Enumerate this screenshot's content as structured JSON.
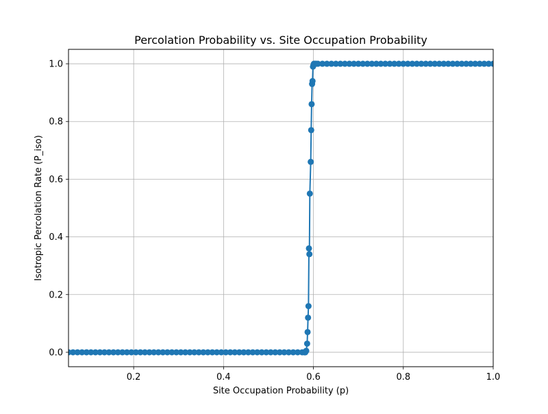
{
  "chart_data": {
    "type": "line",
    "title": "Percolation Probability vs. Site Occupation Probability",
    "xlabel": "Site Occupation Probability (p)",
    "ylabel": "Isotropic Percolation Rate (P_iso)",
    "xlim": [
      0.055,
      1.0
    ],
    "ylim": [
      -0.05,
      1.05
    ],
    "xticks": [
      0.2,
      0.4,
      0.6,
      0.8,
      1.0
    ],
    "xtick_labels": [
      "0.2",
      "0.4",
      "0.6",
      "0.8",
      "1.0"
    ],
    "yticks": [
      0.0,
      0.2,
      0.4,
      0.6,
      0.8,
      1.0
    ],
    "ytick_labels": [
      "0.0",
      "0.2",
      "0.4",
      "0.6",
      "0.8",
      "1.0"
    ],
    "grid": true,
    "legend": "none",
    "marker": "circle",
    "color": "#1f77b4",
    "series": [
      {
        "x": [
          0.055,
          0.065,
          0.075,
          0.085,
          0.095,
          0.105,
          0.115,
          0.125,
          0.135,
          0.145,
          0.155,
          0.165,
          0.175,
          0.185,
          0.195,
          0.205,
          0.215,
          0.225,
          0.235,
          0.245,
          0.255,
          0.265,
          0.275,
          0.285,
          0.295,
          0.305,
          0.315,
          0.325,
          0.335,
          0.345,
          0.355,
          0.365,
          0.375,
          0.385,
          0.395,
          0.405,
          0.415,
          0.425,
          0.435,
          0.445,
          0.455,
          0.465,
          0.475,
          0.485,
          0.495,
          0.505,
          0.515,
          0.525,
          0.535,
          0.545,
          0.555,
          0.565,
          0.575,
          0.58,
          0.582,
          0.584,
          0.586,
          0.587,
          0.588,
          0.589,
          0.59,
          0.591,
          0.592,
          0.594,
          0.595,
          0.596,
          0.597,
          0.598,
          0.599,
          0.6,
          0.601,
          0.603,
          0.606,
          0.61,
          0.62,
          0.63,
          0.64,
          0.65,
          0.66,
          0.67,
          0.68,
          0.69,
          0.7,
          0.71,
          0.72,
          0.73,
          0.74,
          0.75,
          0.76,
          0.77,
          0.78,
          0.79,
          0.8,
          0.81,
          0.82,
          0.83,
          0.84,
          0.85,
          0.86,
          0.87,
          0.88,
          0.89,
          0.9,
          0.91,
          0.92,
          0.93,
          0.94,
          0.95,
          0.96,
          0.97,
          0.98,
          0.99,
          1.0
        ],
        "y": [
          0,
          0,
          0,
          0,
          0,
          0,
          0,
          0,
          0,
          0,
          0,
          0,
          0,
          0,
          0,
          0,
          0,
          0,
          0,
          0,
          0,
          0,
          0,
          0,
          0,
          0,
          0,
          0,
          0,
          0,
          0,
          0,
          0,
          0,
          0,
          0,
          0,
          0,
          0,
          0,
          0,
          0,
          0,
          0,
          0,
          0,
          0,
          0,
          0,
          0,
          0,
          0,
          0,
          0,
          0,
          0.005,
          0.03,
          0.07,
          0.12,
          0.16,
          0.36,
          0.34,
          0.55,
          0.66,
          0.77,
          0.86,
          0.93,
          0.94,
          0.99,
          0.995,
          1.0,
          1.0,
          1.0,
          1.0,
          1.0,
          1.0,
          1.0,
          1.0,
          1.0,
          1.0,
          1.0,
          1.0,
          1.0,
          1.0,
          1.0,
          1.0,
          1.0,
          1.0,
          1.0,
          1.0,
          1.0,
          1.0,
          1.0,
          1.0,
          1.0,
          1.0,
          1.0,
          1.0,
          1.0,
          1.0,
          1.0,
          1.0,
          1.0,
          1.0,
          1.0,
          1.0,
          1.0,
          1.0,
          1.0,
          1.0,
          1.0,
          1.0,
          1.0
        ]
      }
    ]
  }
}
